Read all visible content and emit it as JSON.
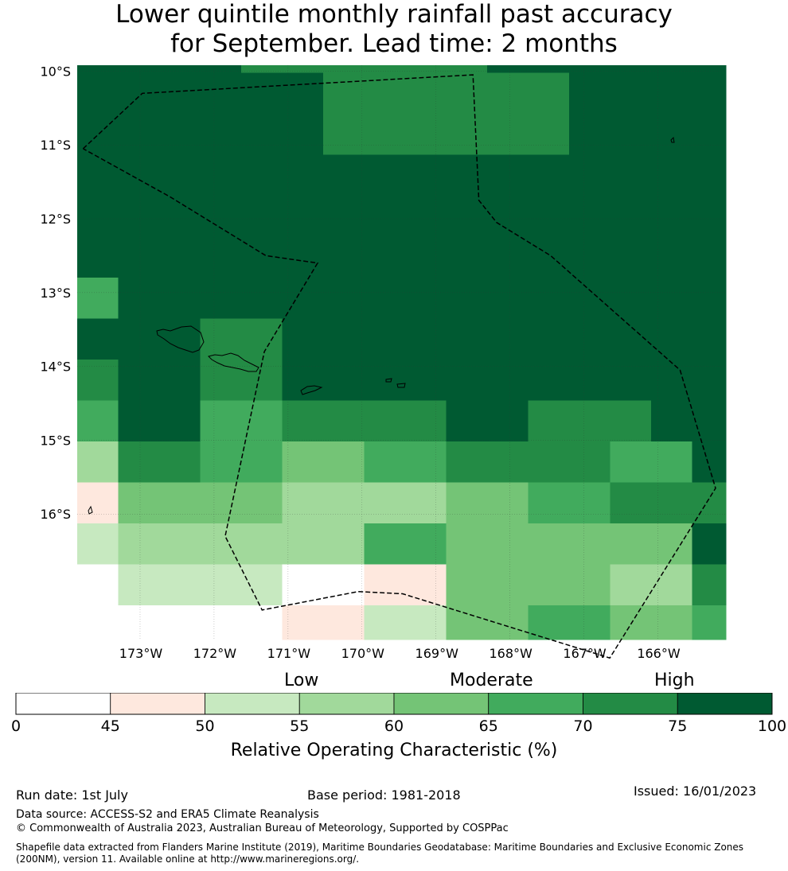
{
  "title": {
    "line1": "Lower quintile monthly rainfall past accuracy",
    "line2": "for September. Lead time: 2 months"
  },
  "map": {
    "lat_labels": [
      "10°S",
      "11°S",
      "12°S",
      "13°S",
      "14°S",
      "15°S",
      "16°S"
    ],
    "lon_labels": [
      "173°W",
      "172°W",
      "171°W",
      "170°W",
      "169°W",
      "168°W",
      "167°W",
      "166°W"
    ],
    "palette": [
      "#ffffff",
      "#fee8de",
      "#c7e9c0",
      "#a1d99b",
      "#74c476",
      "#41ab5d",
      "#238b45",
      "#005a32"
    ],
    "grid_levels": [
      [
        7,
        7,
        7,
        7,
        6,
        6,
        6,
        6,
        6,
        6,
        7,
        7,
        7,
        7,
        7,
        7,
        5
      ],
      [
        7,
        7,
        7,
        7,
        7,
        7,
        6,
        6,
        6,
        6,
        6,
        6,
        7,
        7,
        7,
        7,
        7
      ],
      [
        7,
        7,
        7,
        7,
        7,
        7,
        6,
        6,
        6,
        6,
        6,
        6,
        7,
        7,
        7,
        7,
        7
      ],
      [
        7,
        7,
        7,
        7,
        7,
        7,
        7,
        7,
        7,
        7,
        7,
        7,
        7,
        7,
        7,
        7,
        7
      ],
      [
        7,
        7,
        7,
        7,
        7,
        7,
        7,
        7,
        7,
        7,
        7,
        7,
        7,
        7,
        7,
        7,
        7
      ],
      [
        7,
        7,
        7,
        7,
        7,
        7,
        7,
        7,
        7,
        7,
        7,
        7,
        7,
        7,
        7,
        7,
        7
      ],
      [
        5,
        7,
        7,
        7,
        7,
        7,
        7,
        7,
        7,
        7,
        7,
        7,
        7,
        7,
        7,
        7,
        7
      ],
      [
        7,
        7,
        7,
        6,
        6,
        7,
        7,
        7,
        7,
        7,
        7,
        7,
        7,
        7,
        7,
        7,
        7
      ],
      [
        6,
        7,
        7,
        6,
        6,
        7,
        7,
        7,
        7,
        7,
        7,
        7,
        7,
        7,
        7,
        7,
        7
      ],
      [
        5,
        7,
        7,
        5,
        5,
        6,
        6,
        6,
        6,
        7,
        7,
        6,
        6,
        6,
        7,
        7,
        7
      ],
      [
        3,
        6,
        6,
        5,
        5,
        4,
        4,
        5,
        5,
        6,
        6,
        6,
        6,
        5,
        5,
        7,
        7
      ],
      [
        1,
        4,
        4,
        4,
        4,
        3,
        3,
        3,
        3,
        4,
        4,
        5,
        5,
        6,
        6,
        6,
        6,
        7
      ],
      [
        2,
        3,
        3,
        3,
        3,
        3,
        3,
        5,
        5,
        4,
        4,
        4,
        4,
        4,
        4,
        7,
        7
      ],
      [
        0,
        2,
        2,
        2,
        2,
        0,
        0,
        1,
        1,
        4,
        4,
        4,
        4,
        3,
        3,
        6,
        6,
        7
      ],
      [
        0,
        0,
        0,
        0,
        0,
        1,
        1,
        2,
        2,
        4,
        4,
        5,
        5,
        4,
        4,
        5,
        5,
        5
      ]
    ],
    "boundary_geo": [
      [
        -173.77,
        -11.05
      ],
      [
        -172.97,
        -10.3
      ],
      [
        -168.5,
        -10.05
      ],
      [
        -168.42,
        -11.75
      ],
      [
        -168.18,
        -12.05
      ],
      [
        -167.45,
        -12.5
      ],
      [
        -165.7,
        -14.05
      ],
      [
        -165.22,
        -15.65
      ],
      [
        -166.65,
        -17.95
      ],
      [
        -169.45,
        -17.08
      ],
      [
        -170.05,
        -17.05
      ],
      [
        -171.35,
        -17.3
      ],
      [
        -171.85,
        -16.3
      ],
      [
        -171.32,
        -13.8
      ],
      [
        -170.6,
        -12.6
      ],
      [
        -171.3,
        -12.5
      ],
      [
        -172.6,
        -11.7
      ],
      [
        -173.77,
        -11.05
      ]
    ],
    "colors": {
      "boundary": "#000000",
      "gridline": "#333333"
    }
  },
  "colorbar": {
    "ticks": [
      "0",
      "45",
      "50",
      "55",
      "60",
      "65",
      "70",
      "75",
      "100"
    ],
    "categories": {
      "low": "Low",
      "moderate": "Moderate",
      "high": "High"
    },
    "label": "Relative Operating Characteristic (%)"
  },
  "footer": {
    "run_date": "Run date: 1st July",
    "base_period": "Base period: 1981-2018",
    "issued": "Issued: 16/01/2023",
    "data_source": "Data source: ACCESS-S2 and ERA5 Climate Reanalysis",
    "copyright": "© Commonwealth of Australia 2023, Australian Bureau of Meteorology, Supported by COSPPac",
    "shapefile": "Shapefile data extracted from Flanders Marine Institute (2019), Maritime Boundaries Geodatabase: Maritime Boundaries and Exclusive Economic Zones (200NM), version 11. Available online at http://www.marineregions.org/."
  }
}
